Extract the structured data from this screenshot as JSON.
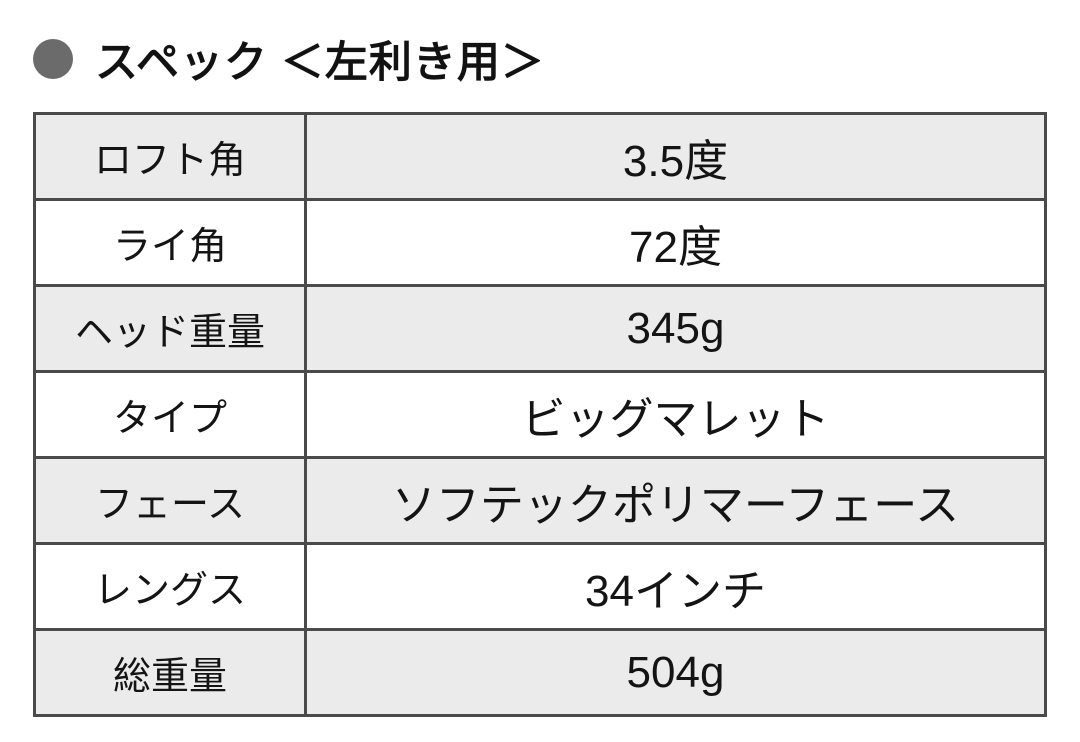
{
  "title": {
    "bullet_icon": "circle-bullet",
    "text": "スペック ＜左利き用＞"
  },
  "table": {
    "rows": [
      {
        "label": "ロフト角",
        "value": "3.5度"
      },
      {
        "label": "ライ角",
        "value": "72度"
      },
      {
        "label": "ヘッド重量",
        "value": "345g"
      },
      {
        "label": "タイプ",
        "value": "ビッグマレット"
      },
      {
        "label": "フェース",
        "value": "ソフテックポリマーフェース"
      },
      {
        "label": "レングス",
        "value": "34インチ"
      },
      {
        "label": "総重量",
        "value": "504g"
      }
    ]
  },
  "colors": {
    "bullet": "#6b6b6b",
    "row_shaded": "#ebebeb",
    "row_plain": "#ffffff",
    "border_outer": "#1c1c1c",
    "border_inner": "#4a4a4a",
    "text": "#141414",
    "background": "#ffffff"
  }
}
